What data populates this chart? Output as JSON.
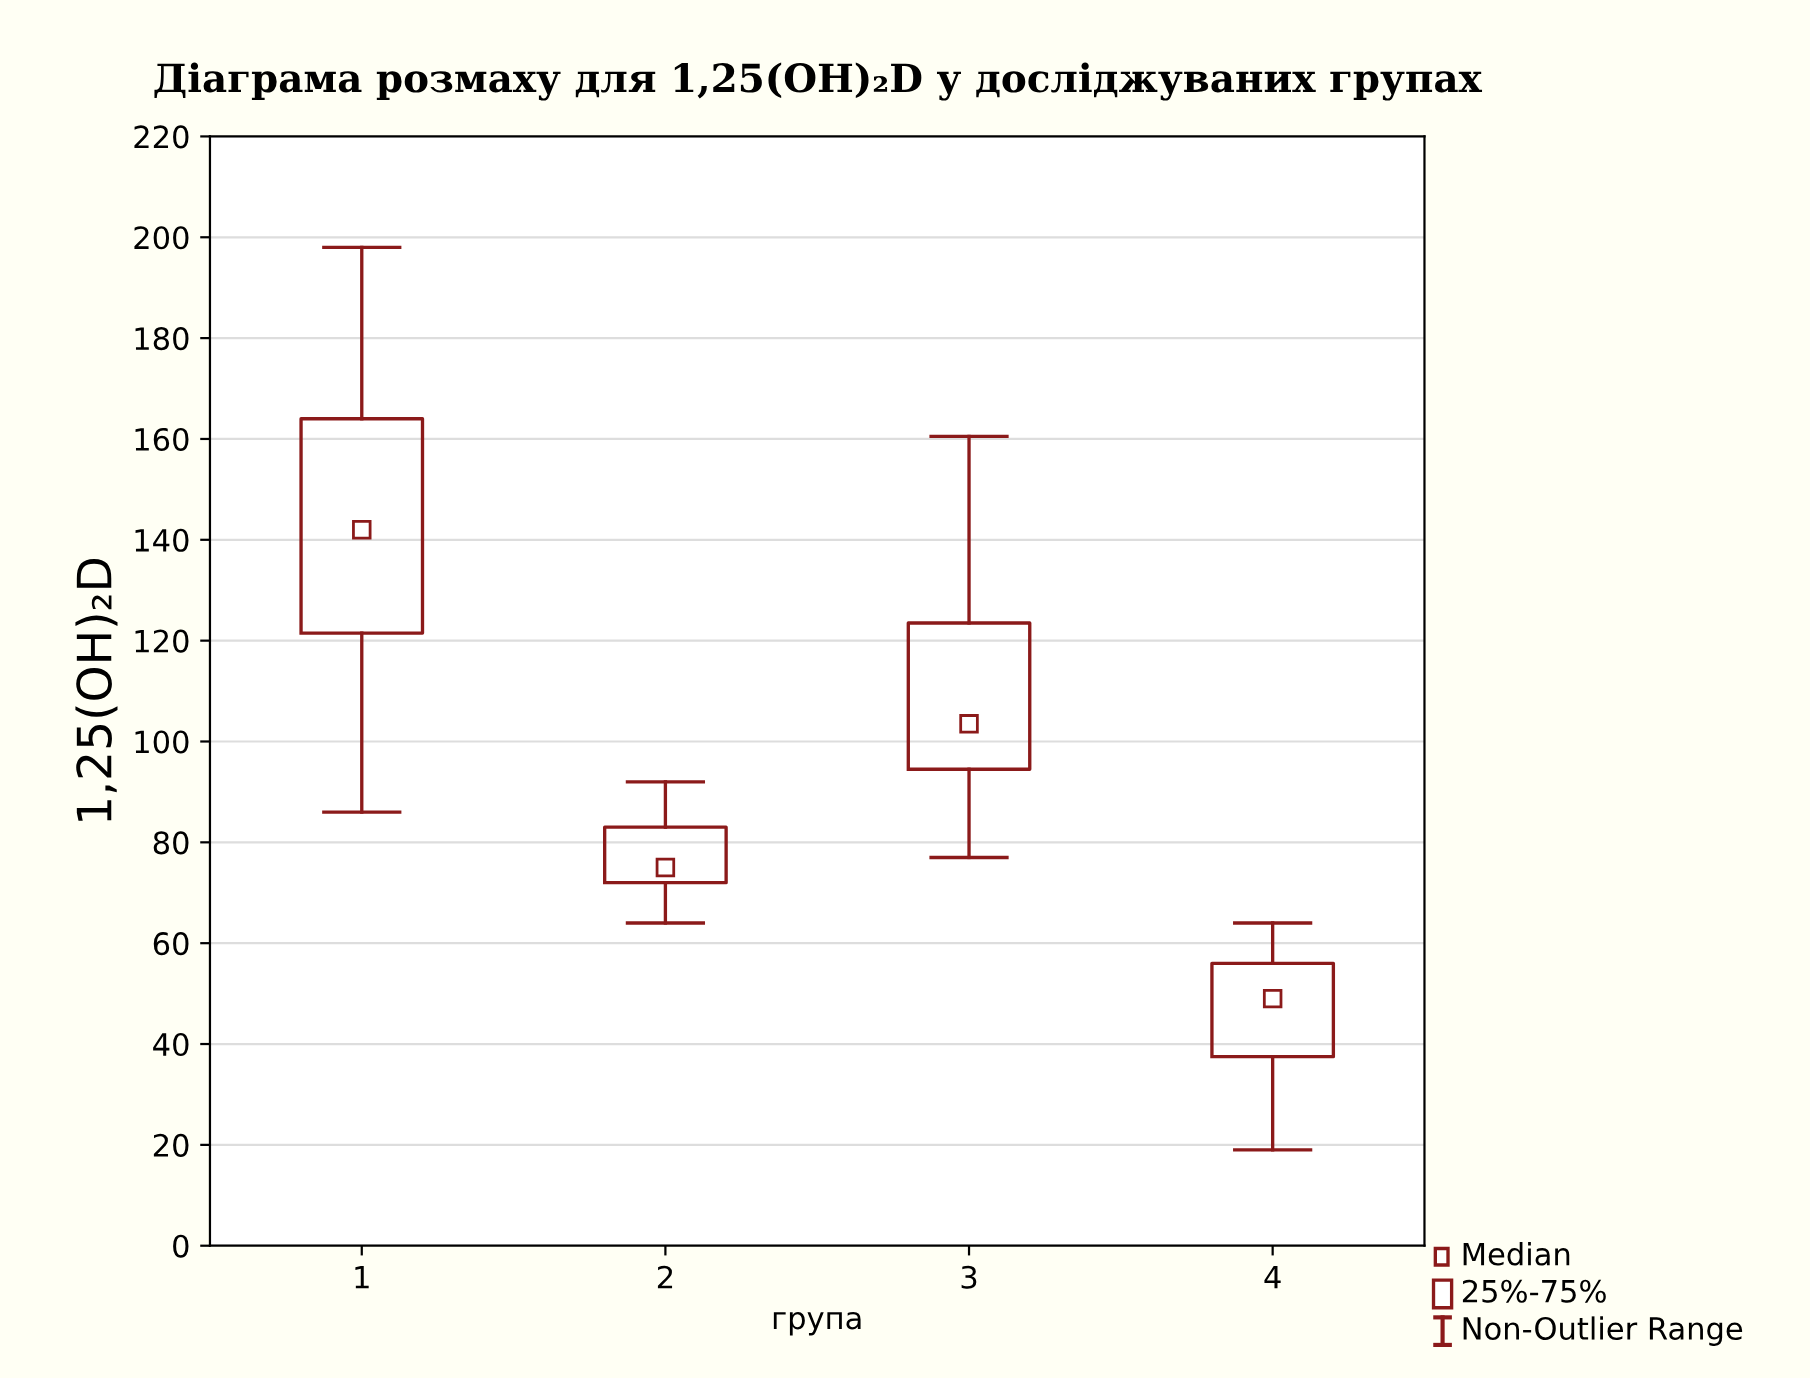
{
  "chart_data": {
    "type": "box",
    "title": "Діаграма розмаху для 1,25(OH)₂D у досліджуваних групах",
    "xlabel": "група",
    "ylabel": "1,25(OH)₂D",
    "categories": [
      "1",
      "2",
      "3",
      "4"
    ],
    "boxes": [
      {
        "low": 86,
        "q1": 121.5,
        "median": 142,
        "q3": 164,
        "high": 198
      },
      {
        "low": 64,
        "q1": 72,
        "median": 75,
        "q3": 83,
        "high": 92
      },
      {
        "low": 77,
        "q1": 94.5,
        "median": 103.5,
        "q3": 123.5,
        "high": 160.5
      },
      {
        "low": 19,
        "q1": 37.5,
        "median": 49,
        "q3": 56,
        "high": 64
      }
    ],
    "color": "#8b1a1a",
    "ylim": [
      0,
      220
    ],
    "yticks": [
      0,
      20,
      40,
      60,
      80,
      100,
      120,
      140,
      160,
      180,
      200,
      220
    ],
    "grid": "y",
    "annotations": [
      "Median",
      "25%-75%",
      "Non-Outlier Range"
    ]
  }
}
